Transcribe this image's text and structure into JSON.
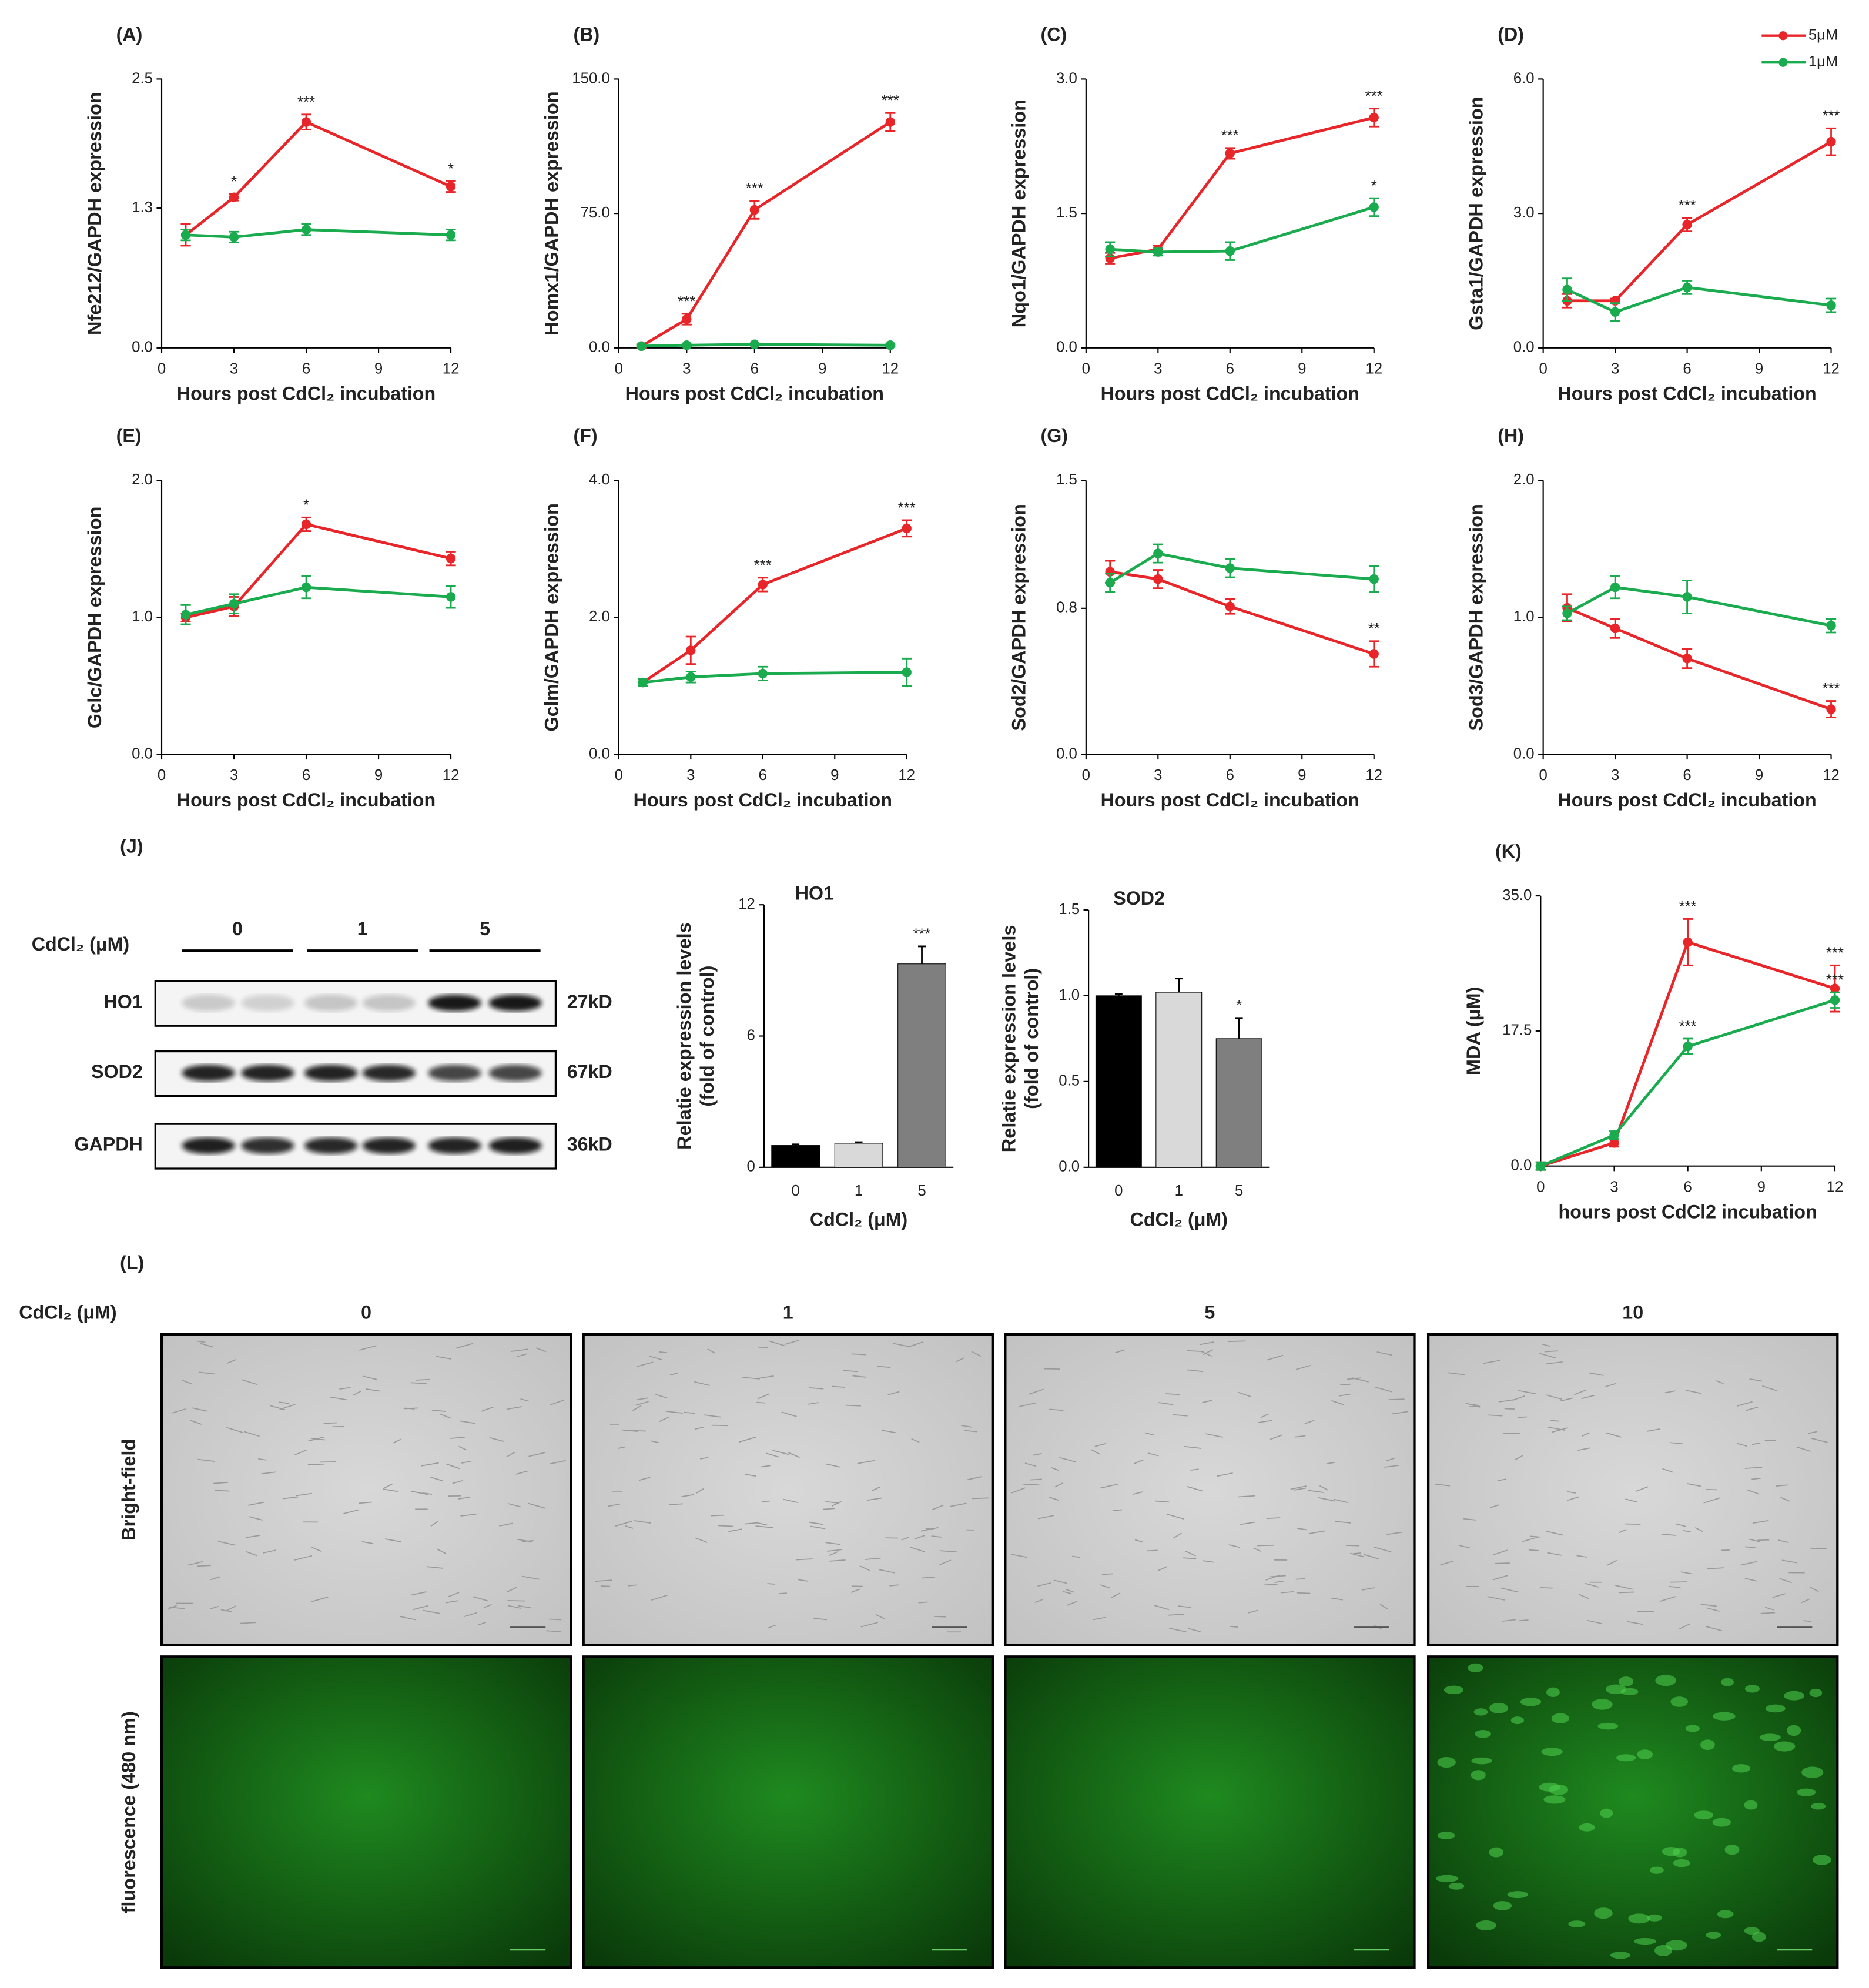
{
  "legend": [
    {
      "name": "5μM",
      "color": "#e8262a"
    },
    {
      "name": "1μM",
      "color": "#1aab4f"
    }
  ],
  "chart_data": [
    {
      "type": "line",
      "panel": "(A)",
      "ylabel": "Nfe212/GAPDH expression",
      "xlabel": "Hours post CdCl₂ incubation",
      "x": [
        1,
        3,
        6,
        12
      ],
      "xlim": [
        0,
        12
      ],
      "xticks": [
        0,
        3,
        6,
        9,
        12
      ],
      "ylim": [
        0,
        2.5
      ],
      "yticks": [
        {
          "value": 0,
          "label": "0.0"
        },
        1.3,
        2.5
      ],
      "series": [
        {
          "values": [
            1.05,
            1.4,
            2.1,
            1.5
          ],
          "errors": [
            0.1,
            0.03,
            0.07,
            0.05
          ],
          "labels": [
            null,
            "*",
            "***",
            "*"
          ]
        },
        {
          "values": [
            1.05,
            1.03,
            1.1,
            1.05
          ],
          "errors": [
            0.05,
            0.05,
            0.05,
            0.05
          ],
          "labels": [
            null,
            null,
            null,
            null
          ]
        }
      ]
    },
    {
      "type": "line",
      "panel": "(B)",
      "ylabel": "Homx1/GAPDH expression",
      "xlabel": "Hours post CdCl₂ incubation",
      "x": [
        1,
        3,
        6,
        12
      ],
      "xlim": [
        0,
        12
      ],
      "xticks": [
        0,
        3,
        6,
        9,
        12
      ],
      "ylim": [
        0,
        150
      ],
      "yticks": [
        {
          "value": 0,
          "label": "0.0"
        },
        {
          "value": 75,
          "label": "75.0"
        },
        {
          "value": 150,
          "label": "150.0"
        }
      ],
      "series": [
        {
          "values": [
            1,
            16,
            77,
            126
          ],
          "errors": [
            1,
            3,
            5,
            5
          ],
          "labels": [
            null,
            "***",
            "***",
            "***"
          ]
        },
        {
          "values": [
            1,
            1.5,
            2,
            1.5
          ],
          "errors": [
            0.5,
            0.5,
            0.5,
            0.5
          ],
          "labels": [
            null,
            null,
            null,
            null
          ]
        }
      ]
    },
    {
      "type": "line",
      "panel": "(C)",
      "ylabel": "Nqo1/GAPDH expression",
      "xlabel": "Hours post CdCl₂ incubation",
      "x": [
        1,
        3,
        6,
        12
      ],
      "xlim": [
        0,
        12
      ],
      "xticks": [
        0,
        3,
        6,
        9,
        12
      ],
      "ylim": [
        0,
        3
      ],
      "yticks": [
        {
          "value": 0,
          "label": "0.0"
        },
        1.5,
        {
          "value": 3,
          "label": "3.0"
        }
      ],
      "series": [
        {
          "values": [
            1.0,
            1.1,
            2.17,
            2.57
          ],
          "errors": [
            0.06,
            0.04,
            0.06,
            0.1
          ],
          "labels": [
            null,
            null,
            "***",
            "***"
          ]
        },
        {
          "values": [
            1.1,
            1.07,
            1.08,
            1.57
          ],
          "errors": [
            0.08,
            0.04,
            0.1,
            0.1
          ],
          "labels": [
            null,
            null,
            null,
            "*"
          ]
        }
      ]
    },
    {
      "type": "line",
      "panel": "(D)",
      "ylabel": "Gsta1/GAPDH expression",
      "xlabel": "Hours post CdCl₂ incubation",
      "x": [
        1,
        3,
        6,
        12
      ],
      "xlim": [
        0,
        12
      ],
      "xticks": [
        0,
        3,
        6,
        9,
        12
      ],
      "ylim": [
        0,
        6
      ],
      "yticks": [
        {
          "value": 0,
          "label": "0.0"
        },
        {
          "value": 3,
          "label": "3.0"
        },
        {
          "value": 6,
          "label": "6.0"
        }
      ],
      "series": [
        {
          "values": [
            1.05,
            1.05,
            2.75,
            4.6
          ],
          "errors": [
            0.15,
            0.05,
            0.15,
            0.3
          ],
          "labels": [
            null,
            null,
            "***",
            "***"
          ]
        },
        {
          "values": [
            1.3,
            0.8,
            1.35,
            0.95
          ],
          "errors": [
            0.25,
            0.2,
            0.15,
            0.15
          ],
          "labels": [
            null,
            null,
            null,
            null
          ]
        }
      ]
    },
    {
      "type": "line",
      "panel": "(E)",
      "ylabel": "Gclc/GAPDH expression",
      "xlabel": "Hours post CdCl₂ incubation",
      "x": [
        1,
        3,
        6,
        12
      ],
      "xlim": [
        0,
        12
      ],
      "xticks": [
        0,
        3,
        6,
        9,
        12
      ],
      "ylim": [
        0,
        2
      ],
      "yticks": [
        {
          "value": 0,
          "label": "0.0"
        },
        {
          "value": 1,
          "label": "1.0"
        },
        {
          "value": 2,
          "label": "2.0"
        }
      ],
      "series": [
        {
          "values": [
            1.0,
            1.08,
            1.68,
            1.43
          ],
          "errors": [
            0.03,
            0.07,
            0.05,
            0.05
          ],
          "labels": [
            null,
            null,
            "*",
            null
          ]
        },
        {
          "values": [
            1.02,
            1.1,
            1.22,
            1.15
          ],
          "errors": [
            0.07,
            0.07,
            0.08,
            0.08
          ],
          "labels": [
            null,
            null,
            null,
            null
          ]
        }
      ]
    },
    {
      "type": "line",
      "panel": "(F)",
      "ylabel": "Gclm/GAPDH expression",
      "xlabel": "Hours post CdCl₂ incubation",
      "x": [
        1,
        3,
        6,
        12
      ],
      "xlim": [
        0,
        12
      ],
      "xticks": [
        0,
        3,
        6,
        9,
        12
      ],
      "ylim": [
        0,
        4
      ],
      "yticks": [
        {
          "value": 0,
          "label": "0.0"
        },
        {
          "value": 2,
          "label": "2.0"
        },
        {
          "value": 4,
          "label": "4.0"
        }
      ],
      "series": [
        {
          "values": [
            1.05,
            1.52,
            2.48,
            3.3
          ],
          "errors": [
            0.05,
            0.2,
            0.1,
            0.12
          ],
          "labels": [
            null,
            null,
            "***",
            "***"
          ]
        },
        {
          "values": [
            1.05,
            1.13,
            1.18,
            1.2
          ],
          "errors": [
            0.05,
            0.08,
            0.1,
            0.2
          ],
          "labels": [
            null,
            null,
            null,
            null
          ]
        }
      ]
    },
    {
      "type": "line",
      "panel": "(G)",
      "ylabel": "Sod2/GAPDH expression",
      "xlabel": "Hours post CdCl₂ incubation",
      "x": [
        1,
        3,
        6,
        12
      ],
      "xlim": [
        0,
        12
      ],
      "xticks": [
        0,
        3,
        6,
        9,
        12
      ],
      "ylim": [
        0,
        1.5
      ],
      "yticks": [
        {
          "value": 0,
          "label": "0.0"
        },
        0.8,
        1.5
      ],
      "series": [
        {
          "values": [
            1.0,
            0.96,
            0.81,
            0.55
          ],
          "errors": [
            0.06,
            0.05,
            0.04,
            0.07
          ],
          "labels": [
            null,
            null,
            null,
            "**"
          ]
        },
        {
          "values": [
            0.94,
            1.1,
            1.02,
            0.96
          ],
          "errors": [
            0.05,
            0.05,
            0.05,
            0.07
          ],
          "labels": [
            null,
            null,
            null,
            null
          ]
        }
      ]
    },
    {
      "type": "line",
      "panel": "(H)",
      "ylabel": "Sod3/GAPDH expression",
      "xlabel": "Hours post CdCl₂ incubation",
      "x": [
        1,
        3,
        6,
        12
      ],
      "xlim": [
        0,
        12
      ],
      "xticks": [
        0,
        3,
        6,
        9,
        12
      ],
      "ylim": [
        0,
        2
      ],
      "yticks": [
        {
          "value": 0,
          "label": "0.0"
        },
        {
          "value": 1,
          "label": "1.0"
        },
        {
          "value": 2,
          "label": "2.0"
        }
      ],
      "series": [
        {
          "values": [
            1.07,
            0.92,
            0.7,
            0.33
          ],
          "errors": [
            0.1,
            0.07,
            0.07,
            0.06
          ],
          "labels": [
            null,
            null,
            null,
            "***"
          ]
        },
        {
          "values": [
            1.03,
            1.22,
            1.15,
            0.94
          ],
          "errors": [
            0.05,
            0.08,
            0.12,
            0.05
          ],
          "labels": [
            null,
            null,
            null,
            null
          ]
        }
      ]
    },
    {
      "type": "bar",
      "title": "HO1",
      "ylabel": [
        "Relatie expression levels",
        "(fold of control)"
      ],
      "xlabel": "CdCl₂ (μM)",
      "categories": [
        "0",
        "1",
        "5"
      ],
      "values": [
        1.0,
        1.1,
        9.3
      ],
      "errors": [
        0.05,
        0.05,
        0.8
      ],
      "labels": [
        null,
        null,
        "***"
      ],
      "colors": [
        "#000000",
        "#d9d9d9",
        "#7f7f7f"
      ],
      "ylim": [
        0,
        12
      ],
      "yticks": [
        0,
        6,
        12
      ]
    },
    {
      "type": "bar",
      "title": "SOD2",
      "ylabel": [
        "Relatie expression levels",
        "(fold of control)"
      ],
      "xlabel": "CdCl₂ (μM)",
      "categories": [
        "0",
        "1",
        "5"
      ],
      "values": [
        1.0,
        1.02,
        0.75
      ],
      "errors": [
        0.01,
        0.08,
        0.12
      ],
      "labels": [
        null,
        null,
        "*"
      ],
      "colors": [
        "#000000",
        "#d9d9d9",
        "#7f7f7f"
      ],
      "ylim": [
        0,
        1.5
      ],
      "yticks": [
        {
          "value": 0,
          "label": "0.0"
        },
        0.5,
        {
          "value": 1,
          "label": "1.0"
        },
        1.5
      ]
    },
    {
      "type": "line",
      "panel": "(K)",
      "ylabel": "MDA (μM)",
      "xlabel": "hours post CdCl2 incubation",
      "x": [
        0,
        3,
        6,
        12
      ],
      "xlim": [
        0,
        12
      ],
      "xticks": [
        0,
        3,
        6,
        9,
        12
      ],
      "ylim": [
        0,
        35
      ],
      "yticks": [
        {
          "value": 0,
          "label": "0.0"
        },
        17.5,
        {
          "value": 35,
          "label": "35.0"
        }
      ],
      "series": [
        {
          "values": [
            0,
            3,
            29,
            23
          ],
          "errors": [
            0.5,
            0.5,
            3,
            3
          ],
          "labels": [
            null,
            null,
            "***",
            "***"
          ]
        },
        {
          "values": [
            0,
            4,
            15.5,
            21.5
          ],
          "errors": [
            0.5,
            0.5,
            1,
            1
          ],
          "labels": [
            null,
            null,
            "***",
            "***"
          ]
        }
      ]
    }
  ],
  "blot": {
    "panel": "(J)",
    "dose_label": "CdCl₂ (μM)",
    "groups": [
      "0",
      "1",
      "5"
    ],
    "rows": [
      {
        "name": "HO1",
        "size": "27kD"
      },
      {
        "name": "SOD2",
        "size": "67kD"
      },
      {
        "name": "GAPDH",
        "size": "36kD"
      }
    ]
  },
  "microscopy": {
    "panel": "(L)",
    "dose_label": "CdCl₂ (μM)",
    "columns": [
      "0",
      "1",
      "5",
      "10"
    ],
    "rows": [
      "Bright-field",
      "fluorescence (480 nm)"
    ]
  }
}
